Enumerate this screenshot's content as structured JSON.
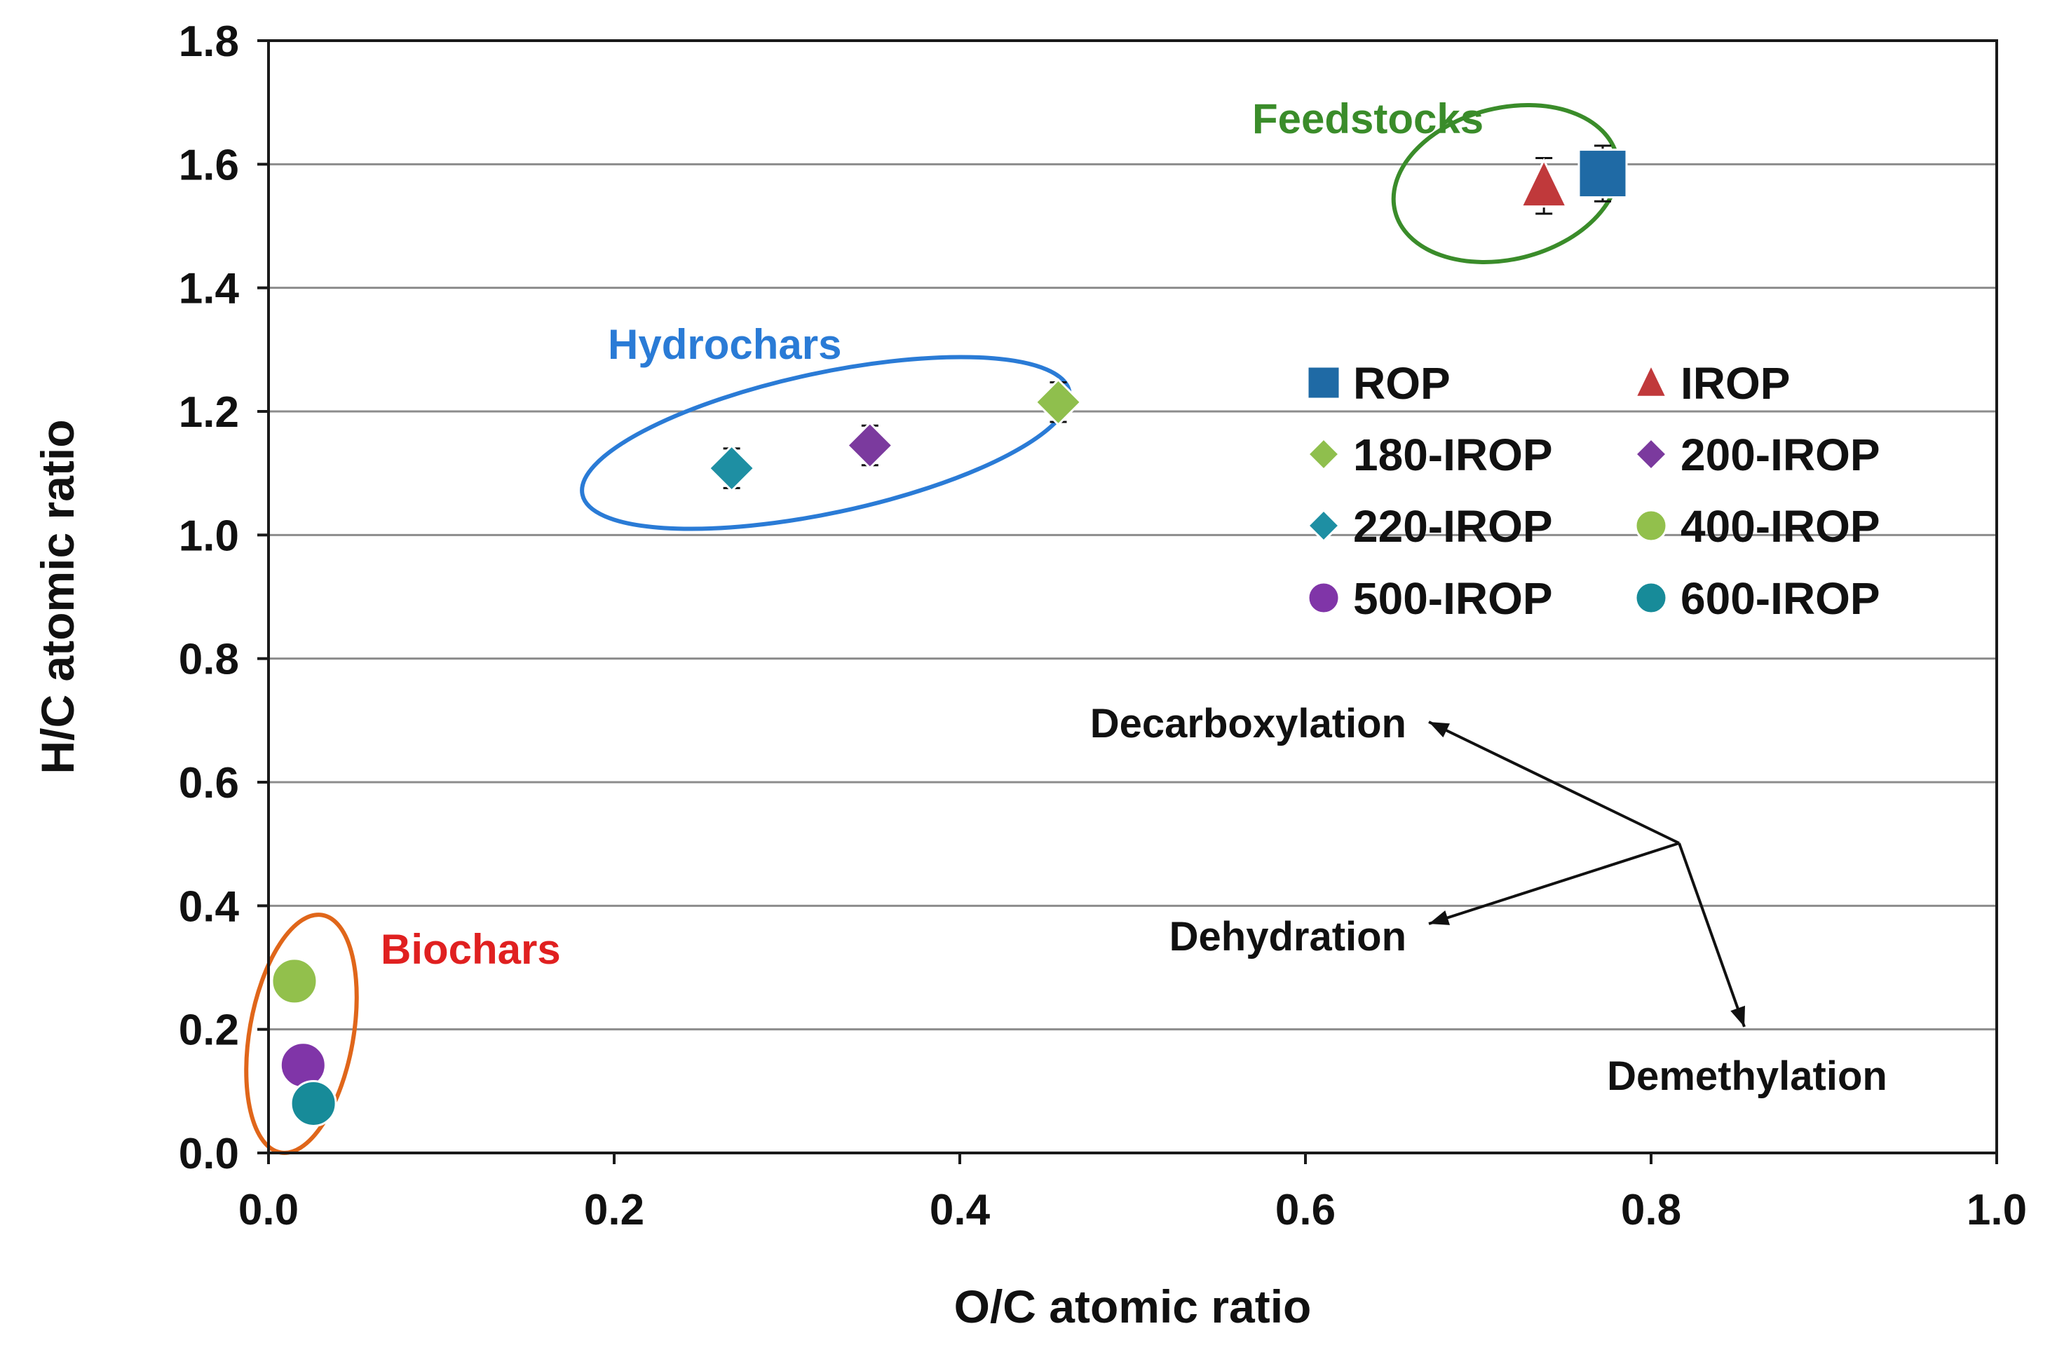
{
  "chart_data": {
    "type": "scatter",
    "title": "",
    "xlabel": "O/C atomic ratio",
    "ylabel": "H/C atomic ratio",
    "xlim": [
      0.0,
      1.0
    ],
    "ylim": [
      0.0,
      1.8
    ],
    "xticks": [
      0.0,
      0.2,
      0.4,
      0.6,
      0.8,
      1.0
    ],
    "xtick_labels": [
      "0.0",
      "0.2",
      "0.4",
      "0.6",
      "0.8",
      "1.0"
    ],
    "yticks": [
      0.0,
      0.2,
      0.4,
      0.6,
      0.8,
      1.0,
      1.2,
      1.4,
      1.6,
      1.8
    ],
    "ytick_labels": [
      "0.0",
      "0.2",
      "0.4",
      "0.6",
      "0.8",
      "1.0",
      "1.2",
      "1.4",
      "1.6",
      "1.8"
    ],
    "grid": "horizontal",
    "legend_position": "top-right",
    "series": [
      {
        "name": "ROP",
        "marker": "square",
        "color": "#1f6aa5",
        "x": 0.772,
        "y": 1.585,
        "y_err": 0.045
      },
      {
        "name": "IROP",
        "marker": "triangle",
        "color": "#c0393b",
        "x": 0.738,
        "y": 1.565,
        "y_err": 0.045
      },
      {
        "name": "180-IROP",
        "marker": "diamond",
        "color": "#8fbf4d",
        "x": 0.457,
        "y": 1.215,
        "y_err": 0.032
      },
      {
        "name": "200-IROP",
        "marker": "diamond",
        "color": "#7b3a9e",
        "x": 0.348,
        "y": 1.145,
        "y_err": 0.032
      },
      {
        "name": "220-IROP",
        "marker": "diamond",
        "color": "#1e8fa3",
        "x": 0.268,
        "y": 1.108,
        "y_err": 0.032
      },
      {
        "name": "400-IROP",
        "marker": "circle",
        "color": "#92c04c",
        "x": 0.015,
        "y": 0.278,
        "y_err": 0
      },
      {
        "name": "500-IROP",
        "marker": "circle",
        "color": "#8035a8",
        "x": 0.02,
        "y": 0.142,
        "y_err": 0
      },
      {
        "name": "600-IROP",
        "marker": "circle",
        "color": "#178b99",
        "x": 0.026,
        "y": 0.08,
        "y_err": 0
      }
    ],
    "groups": [
      {
        "label": "Feedstocks",
        "color": "#3a8c2a"
      },
      {
        "label": "Hydrochars",
        "color": "#2a7bd6"
      },
      {
        "label": "Biochars",
        "color": "#e02020",
        "outline": "#e0661a"
      }
    ],
    "annotations": [
      {
        "text": "Decarboxylation"
      },
      {
        "text": "Dehydration"
      },
      {
        "text": "Demethylation"
      }
    ]
  }
}
